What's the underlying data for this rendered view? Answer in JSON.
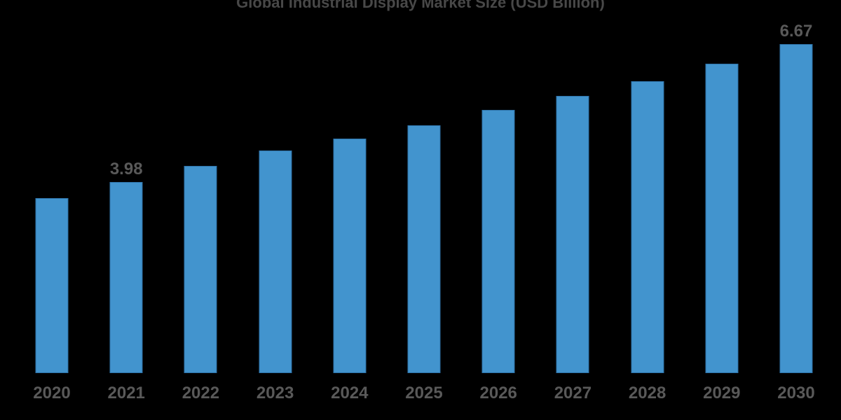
{
  "page": {
    "background_color": "#000000"
  },
  "chart_data": {
    "type": "bar",
    "title": "Global Industrial Display Market Size (USD Billion)",
    "categories": [
      "2020",
      "2021",
      "2022",
      "2023",
      "2024",
      "2025",
      "2026",
      "2027",
      "2028",
      "2029",
      "2030"
    ],
    "series": [
      {
        "name": "Market Size (USD Billion)",
        "values": [
          3.67,
          3.98,
          4.29,
          4.6,
          4.83,
          5.09,
          5.39,
          5.66,
          5.95,
          6.29,
          6.67
        ]
      }
    ],
    "data_labels": {
      "2021": "3.98",
      "2030": "6.67"
    },
    "xlabel": "",
    "ylabel": "",
    "ylim": [
      0,
      7
    ],
    "grid": false,
    "legend": false,
    "axis_lines": false,
    "bar_color": "#4294CE",
    "bar_border_color": "#2E72A8",
    "title_color": "#484848",
    "label_color": "#595959"
  }
}
